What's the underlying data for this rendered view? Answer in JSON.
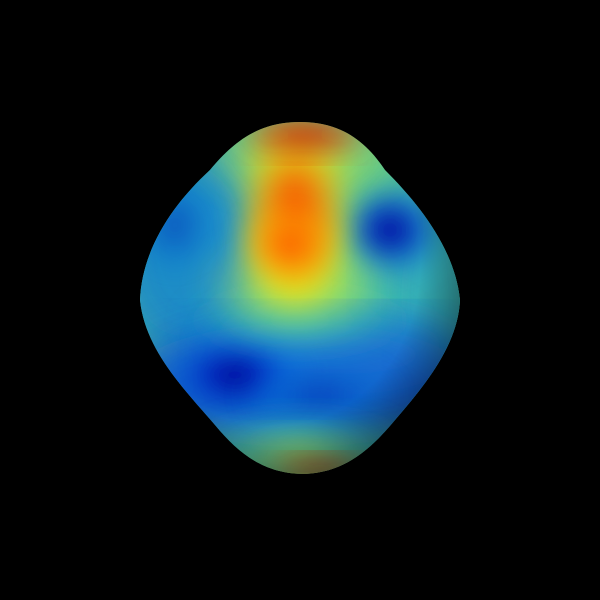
{
  "scene": {
    "background_color": "#000000",
    "object": "deformed-sphere",
    "colormap": "jet",
    "colormap_stops": [
      "#00007f",
      "#0000ff",
      "#007fff",
      "#00ffff",
      "#7fff7f",
      "#ffff00",
      "#ff7f00",
      "#ff0000",
      "#7f0000"
    ]
  }
}
